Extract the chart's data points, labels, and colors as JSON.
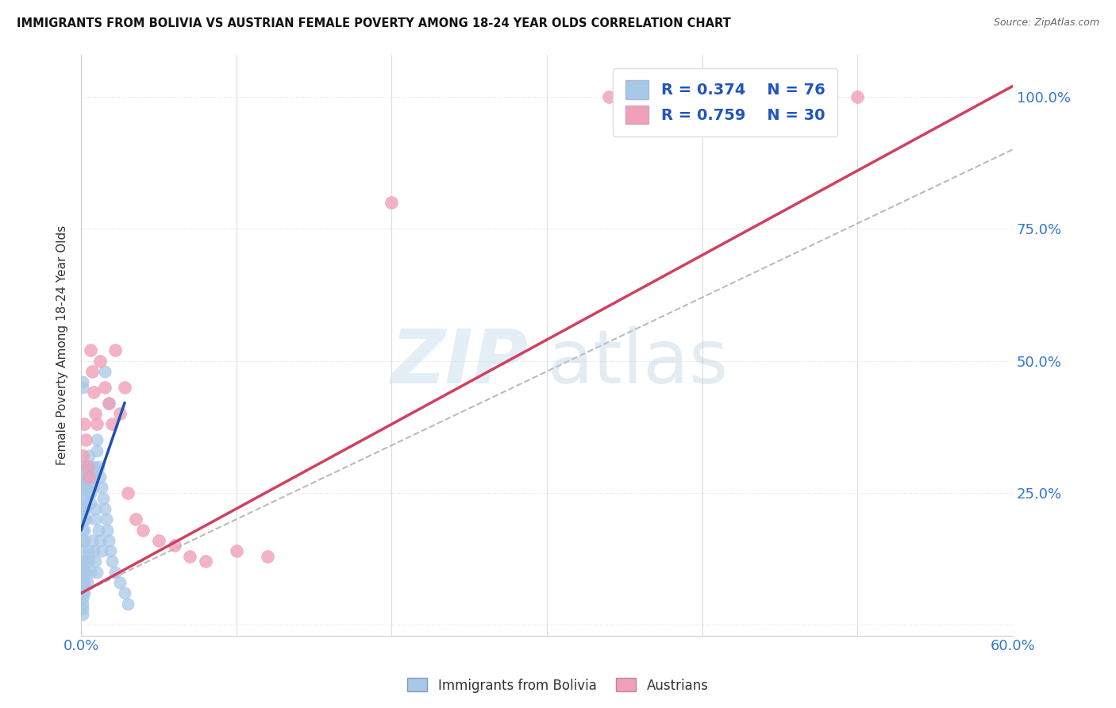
{
  "title": "IMMIGRANTS FROM BOLIVIA VS AUSTRIAN FEMALE POVERTY AMONG 18-24 YEAR OLDS CORRELATION CHART",
  "source": "Source: ZipAtlas.com",
  "ylabel": "Female Poverty Among 18-24 Year Olds",
  "xlim": [
    0.0,
    0.6
  ],
  "ylim": [
    -0.02,
    1.08
  ],
  "ytick_positions": [
    0.0,
    0.25,
    0.5,
    0.75,
    1.0
  ],
  "yticklabels_right": [
    "",
    "25.0%",
    "50.0%",
    "75.0%",
    "100.0%"
  ],
  "blue_R": 0.374,
  "blue_N": 76,
  "pink_R": 0.759,
  "pink_N": 30,
  "blue_color": "#a8c8e8",
  "pink_color": "#f0a0b8",
  "blue_line_color": "#2050b0",
  "pink_line_color": "#d04060",
  "grid_color": "#dddddd",
  "blue_scatter_x": [
    0.001,
    0.001,
    0.001,
    0.001,
    0.001,
    0.001,
    0.001,
    0.001,
    0.001,
    0.001,
    0.002,
    0.002,
    0.002,
    0.002,
    0.002,
    0.002,
    0.002,
    0.002,
    0.003,
    0.003,
    0.003,
    0.003,
    0.003,
    0.004,
    0.004,
    0.004,
    0.005,
    0.005,
    0.005,
    0.006,
    0.006,
    0.007,
    0.007,
    0.008,
    0.008,
    0.009,
    0.009,
    0.01,
    0.01,
    0.011,
    0.012,
    0.013,
    0.014,
    0.015,
    0.016,
    0.017,
    0.018,
    0.019,
    0.02,
    0.022,
    0.025,
    0.028,
    0.03,
    0.001,
    0.001,
    0.001,
    0.001,
    0.001,
    0.002,
    0.002,
    0.002,
    0.003,
    0.003,
    0.004,
    0.005,
    0.005,
    0.006,
    0.007,
    0.008,
    0.009,
    0.01,
    0.011,
    0.012,
    0.013,
    0.015,
    0.018
  ],
  "blue_scatter_y": [
    0.45,
    0.46,
    0.22,
    0.2,
    0.18,
    0.16,
    0.14,
    0.12,
    0.1,
    0.08,
    0.3,
    0.28,
    0.26,
    0.24,
    0.22,
    0.2,
    0.18,
    0.16,
    0.28,
    0.26,
    0.24,
    0.22,
    0.2,
    0.3,
    0.28,
    0.26,
    0.32,
    0.3,
    0.28,
    0.25,
    0.23,
    0.28,
    0.26,
    0.3,
    0.28,
    0.22,
    0.2,
    0.35,
    0.33,
    0.3,
    0.28,
    0.26,
    0.24,
    0.22,
    0.2,
    0.18,
    0.16,
    0.14,
    0.12,
    0.1,
    0.08,
    0.06,
    0.04,
    0.06,
    0.05,
    0.04,
    0.03,
    0.02,
    0.1,
    0.08,
    0.06,
    0.12,
    0.1,
    0.08,
    0.14,
    0.12,
    0.1,
    0.16,
    0.14,
    0.12,
    0.1,
    0.18,
    0.16,
    0.14,
    0.48,
    0.42
  ],
  "pink_scatter_x": [
    0.001,
    0.002,
    0.003,
    0.004,
    0.005,
    0.006,
    0.007,
    0.008,
    0.009,
    0.01,
    0.012,
    0.015,
    0.018,
    0.02,
    0.022,
    0.025,
    0.028,
    0.03,
    0.035,
    0.04,
    0.05,
    0.06,
    0.07,
    0.08,
    0.1,
    0.12,
    0.2,
    0.34,
    0.36,
    0.5
  ],
  "pink_scatter_y": [
    0.32,
    0.38,
    0.35,
    0.3,
    0.28,
    0.52,
    0.48,
    0.44,
    0.4,
    0.38,
    0.5,
    0.45,
    0.42,
    0.38,
    0.52,
    0.4,
    0.45,
    0.25,
    0.2,
    0.18,
    0.16,
    0.15,
    0.13,
    0.12,
    0.14,
    0.13,
    0.8,
    1.0,
    1.0,
    1.0
  ],
  "blue_line_x": [
    0.0,
    0.028
  ],
  "blue_line_y": [
    0.18,
    0.42
  ],
  "pink_line_x": [
    0.0,
    0.6
  ],
  "pink_line_y": [
    0.06,
    1.02
  ],
  "dash_line_x": [
    0.0,
    0.6
  ],
  "dash_line_y": [
    0.06,
    0.9
  ]
}
